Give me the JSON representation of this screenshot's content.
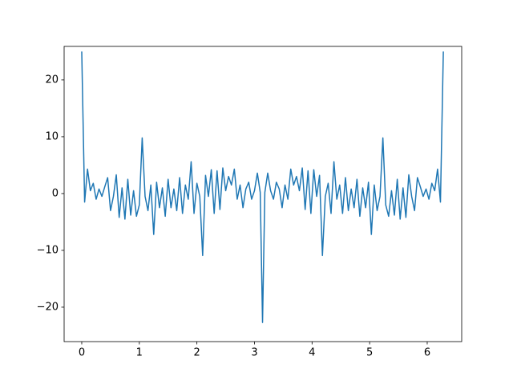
{
  "chart_data": {
    "type": "line",
    "x": [
      0,
      0.05,
      0.1,
      0.15,
      0.2,
      0.25,
      0.3,
      0.35,
      0.4,
      0.45,
      0.5,
      0.55,
      0.6,
      0.65,
      0.7,
      0.75,
      0.8,
      0.85,
      0.9,
      0.95,
      1.0,
      1.05,
      1.1,
      1.15,
      1.2,
      1.25,
      1.3,
      1.35,
      1.4,
      1.45,
      1.5,
      1.55,
      1.6,
      1.65,
      1.7,
      1.75,
      1.8,
      1.85,
      1.9,
      1.95,
      2.0,
      2.05,
      2.1,
      2.15,
      2.2,
      2.25,
      2.3,
      2.35,
      2.4,
      2.45,
      2.5,
      2.55,
      2.6,
      2.65,
      2.7,
      2.75,
      2.8,
      2.85,
      2.9,
      2.95,
      3.0,
      3.05,
      3.1,
      3.14,
      3.18,
      3.23,
      3.28,
      3.33,
      3.38,
      3.43,
      3.48,
      3.53,
      3.58,
      3.63,
      3.68,
      3.73,
      3.78,
      3.83,
      3.88,
      3.93,
      3.98,
      4.03,
      4.08,
      4.13,
      4.18,
      4.23,
      4.28,
      4.33,
      4.38,
      4.43,
      4.48,
      4.53,
      4.58,
      4.63,
      4.68,
      4.73,
      4.78,
      4.83,
      4.88,
      4.93,
      4.98,
      5.03,
      5.08,
      5.13,
      5.18,
      5.23,
      5.28,
      5.33,
      5.38,
      5.43,
      5.48,
      5.53,
      5.58,
      5.63,
      5.68,
      5.73,
      5.78,
      5.83,
      5.88,
      5.93,
      5.98,
      6.03,
      6.08,
      6.13,
      6.18,
      6.23,
      6.28
    ],
    "series": [
      {
        "color": "#1f77b4",
        "values": [
          25,
          -1.5,
          4.3,
          0.5,
          1.8,
          -1.0,
          0.8,
          -0.5,
          1.2,
          2.8,
          -3.0,
          -0.5,
          3.3,
          -4.2,
          1.0,
          -4.5,
          2.5,
          -3.8,
          0.5,
          -4.0,
          -2.0,
          9.8,
          -0.5,
          -3.0,
          1.5,
          -7.2,
          2.0,
          -2.5,
          1.0,
          -4.0,
          2.5,
          -2.5,
          0.8,
          -3.0,
          2.8,
          -3.5,
          1.5,
          -1.0,
          5.6,
          -3.5,
          1.8,
          -0.5,
          -10.9,
          3.2,
          -0.5,
          4.2,
          -3.5,
          4.0,
          -2.8,
          4.5,
          0.5,
          3.0,
          1.5,
          4.3,
          -1.0,
          1.5,
          -2.5,
          0.8,
          2.0,
          -1.0,
          0.5,
          3.6,
          0.2,
          -22.7,
          0.2,
          3.6,
          0.5,
          -1.0,
          2.0,
          0.8,
          -2.5,
          1.5,
          -1.0,
          4.3,
          1.5,
          3.0,
          0.5,
          4.5,
          -2.8,
          4.0,
          -3.5,
          4.2,
          -0.5,
          3.2,
          -10.9,
          -0.5,
          1.8,
          -3.5,
          5.6,
          -1.0,
          1.5,
          -3.5,
          2.8,
          -3.0,
          0.8,
          -2.5,
          2.5,
          -4.0,
          1.0,
          -2.5,
          2.0,
          -7.2,
          1.5,
          -3.0,
          -0.5,
          9.8,
          -2.0,
          -4.0,
          0.5,
          -3.8,
          2.5,
          -4.5,
          1.0,
          -4.2,
          3.3,
          -0.5,
          -3.0,
          2.8,
          1.2,
          -0.5,
          0.8,
          -1.0,
          1.8,
          0.5,
          4.3,
          -1.5,
          25
        ]
      }
    ],
    "xlim": [
      -0.306,
      6.599
    ],
    "xticks": [
      0,
      1,
      2,
      3,
      4,
      5,
      6
    ],
    "ylim": [
      -26.06,
      25.9
    ],
    "yticks": [
      {
        "value": -20,
        "label": "−20"
      },
      {
        "value": -10,
        "label": "−10"
      },
      0,
      10,
      20
    ]
  }
}
